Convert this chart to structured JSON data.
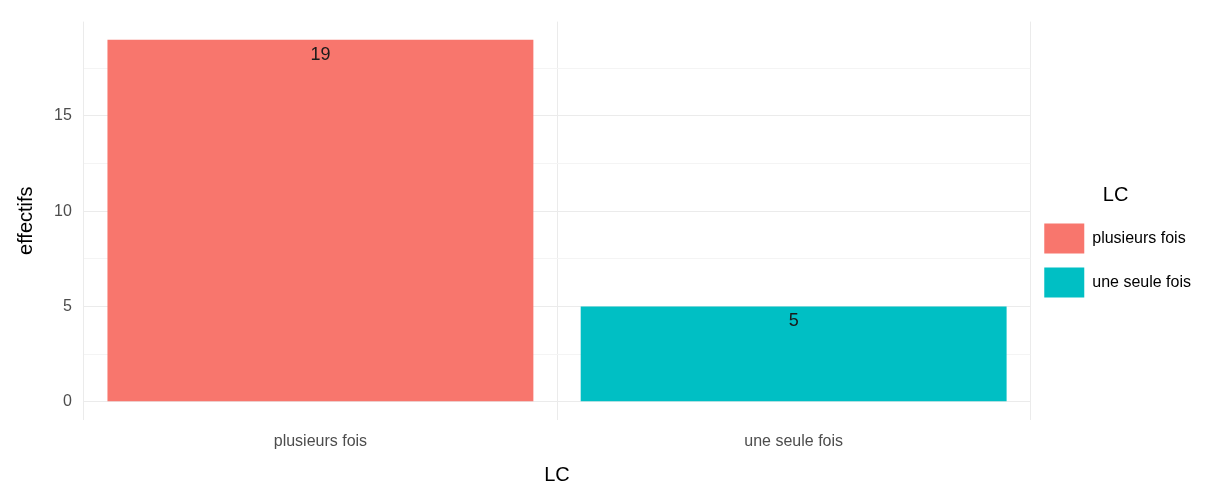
{
  "chart_data": {
    "type": "bar",
    "xlabel": "LC",
    "ylabel": "effectifs",
    "legend_title": "LC",
    "categories": [
      "plusieurs fois",
      "une seule fois"
    ],
    "series": [
      {
        "name": "plusieurs fois",
        "color": "#f8766d",
        "values": [
          19,
          null
        ]
      },
      {
        "name": "une seule fois",
        "color": "#00bfc4",
        "values": [
          null,
          5
        ]
      }
    ],
    "ylim": [
      -0.95,
      19.95
    ],
    "yticks": [
      0,
      {
        "value": 2.5,
        "label": null
      },
      5,
      {
        "value": 7.5,
        "label": null
      },
      10,
      {
        "value": 12.5,
        "label": null
      },
      15,
      {
        "value": 17.5,
        "label": null
      }
    ],
    "grid": true,
    "legend": "right",
    "data_labels": true
  }
}
